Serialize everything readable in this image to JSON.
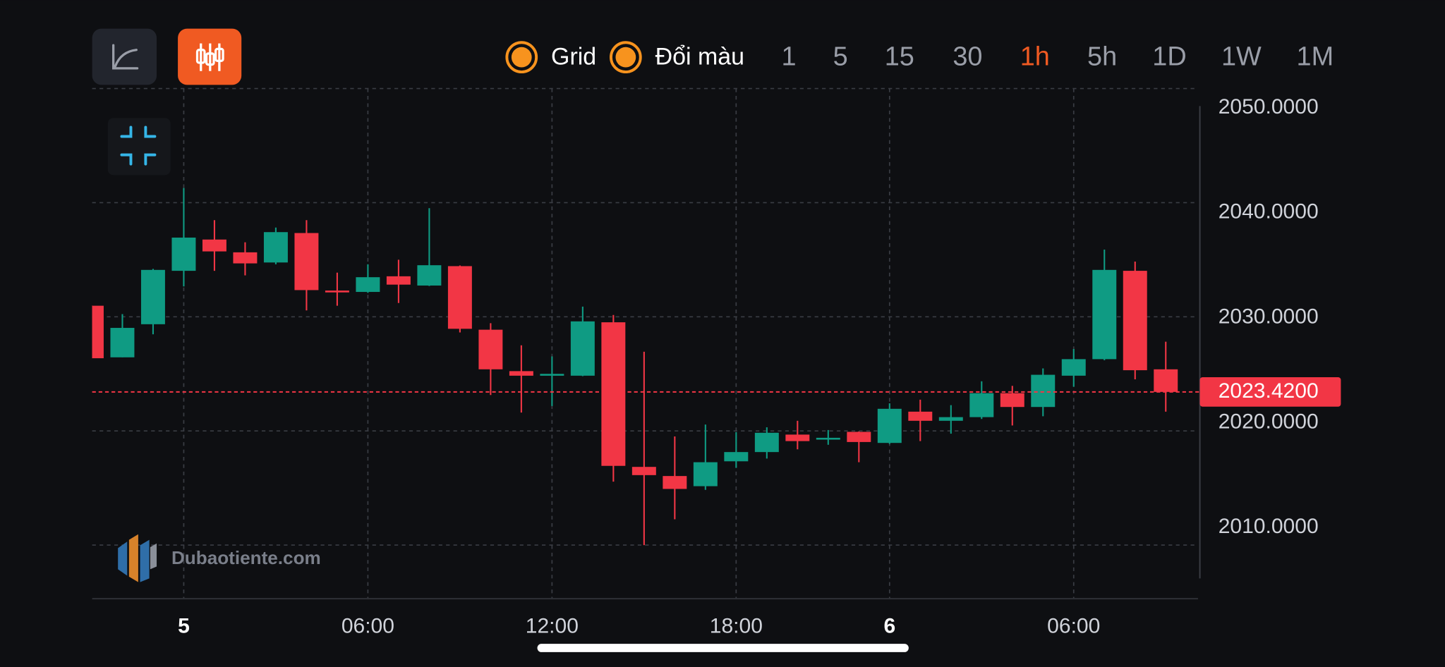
{
  "toolbar": {
    "options": [
      "Grid",
      "Đổi màu"
    ],
    "intervals": [
      "1",
      "5",
      "15",
      "30",
      "1h",
      "5h",
      "1D",
      "1W",
      "1M"
    ],
    "active_interval": 4
  },
  "watermark": "Dubaotiente.com",
  "chart_data": {
    "type": "candlestick",
    "categories": [
      null,
      null,
      null,
      "5",
      null,
      null,
      null,
      null,
      null,
      "06:00",
      null,
      null,
      null,
      null,
      null,
      "12:00",
      null,
      null,
      null,
      null,
      null,
      "18:00",
      null,
      null,
      null,
      null,
      "6",
      null,
      null,
      null,
      null,
      null,
      "06:00",
      null,
      null,
      null
    ],
    "open": [
      2030.97,
      2026.45,
      2029.35,
      2034.03,
      2036.77,
      2035.65,
      2034.76,
      2037.34,
      2032.3,
      2032.18,
      2033.55,
      2032.74,
      2034.44,
      2028.87,
      2025.24,
      2024.9,
      2024.84,
      2029.52,
      2016.85,
      2016.05,
      2015.16,
      2017.34,
      2018.15,
      2019.68,
      2019.3,
      2019.92,
      2018.95,
      2021.69,
      2020.89,
      2021.21,
      2023.31,
      2022.1,
      2024.84,
      2026.29,
      2034.03,
      2025.4
    ],
    "high": [
      2031.0,
      2030.24,
      2034.2,
      2041.29,
      2038.47,
      2036.53,
      2037.82,
      2038.47,
      2033.87,
      2034.6,
      2035.0,
      2039.52,
      2034.5,
      2029.44,
      2027.5,
      2026.53,
      2030.89,
      2030.16,
      2026.94,
      2019.52,
      2020.56,
      2019.9,
      2020.32,
      2020.89,
      2020.08,
      2019.95,
      2022.42,
      2022.74,
      2022.26,
      2024.35,
      2023.95,
      2025.48,
      2027.18,
      2035.89,
      2034.84,
      2027.82
    ],
    "low": [
      2026.37,
      2026.45,
      2028.47,
      2032.66,
      2034.03,
      2033.63,
      2034.6,
      2030.56,
      2030.97,
      2032.1,
      2031.21,
      2032.7,
      2028.63,
      2023.15,
      2021.61,
      2022.18,
      2024.8,
      2015.56,
      2010.0,
      2012.26,
      2014.84,
      2016.77,
      2017.58,
      2018.39,
      2018.79,
      2017.26,
      2018.87,
      2019.11,
      2019.76,
      2021.05,
      2020.48,
      2021.29,
      2023.87,
      2026.2,
      2024.52,
      2021.69
    ],
    "close": [
      2026.37,
      2029.03,
      2034.11,
      2036.94,
      2035.73,
      2034.68,
      2037.42,
      2032.34,
      2032.2,
      2033.47,
      2032.82,
      2034.52,
      2028.95,
      2025.4,
      2024.84,
      2025.0,
      2029.6,
      2016.94,
      2016.13,
      2014.92,
      2017.26,
      2018.15,
      2019.84,
      2019.11,
      2019.4,
      2019.03,
      2021.94,
      2020.89,
      2021.21,
      2023.31,
      2022.1,
      2024.92,
      2026.29,
      2034.11,
      2025.32,
      2023.42
    ],
    "up_color": "#0f9b83",
    "down_color": "#f23645",
    "ylim": [
      2005.3,
      2050
    ],
    "yticks": [
      {
        "value": 2050,
        "label": "2050.0000"
      },
      {
        "value": 2040,
        "label": "2040.0000"
      },
      {
        "value": 2030,
        "label": "2030.0000"
      },
      {
        "value": 2020,
        "label": "2020.0000"
      },
      {
        "value": 2010,
        "label": "2010.0000"
      }
    ],
    "current_price": {
      "value": 2023.42,
      "label": "2023.4200"
    },
    "grid": true
  }
}
